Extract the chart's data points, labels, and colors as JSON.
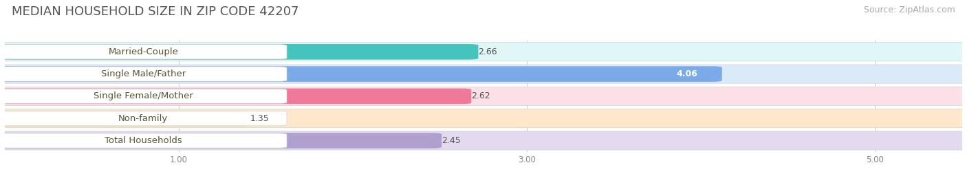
{
  "title": "MEDIAN HOUSEHOLD SIZE IN ZIP CODE 42207",
  "source": "Source: ZipAtlas.com",
  "categories": [
    "Married-Couple",
    "Single Male/Father",
    "Single Female/Mother",
    "Non-family",
    "Total Households"
  ],
  "values": [
    2.66,
    4.06,
    2.62,
    1.35,
    2.45
  ],
  "bar_colors": [
    "#45c4be",
    "#7aaae8",
    "#f07898",
    "#f5c98a",
    "#b0a0ce"
  ],
  "bar_bg_colors": [
    "#e0f7f7",
    "#daeaf8",
    "#fce0e8",
    "#fde8cc",
    "#e4daf0"
  ],
  "xlim": [
    0.0,
    5.5
  ],
  "xstart": 0.0,
  "xticks": [
    1.0,
    3.0,
    5.0
  ],
  "title_fontsize": 13,
  "source_fontsize": 9,
  "bar_label_fontsize": 9.5,
  "value_fontsize": 9,
  "background_color": "#ffffff"
}
